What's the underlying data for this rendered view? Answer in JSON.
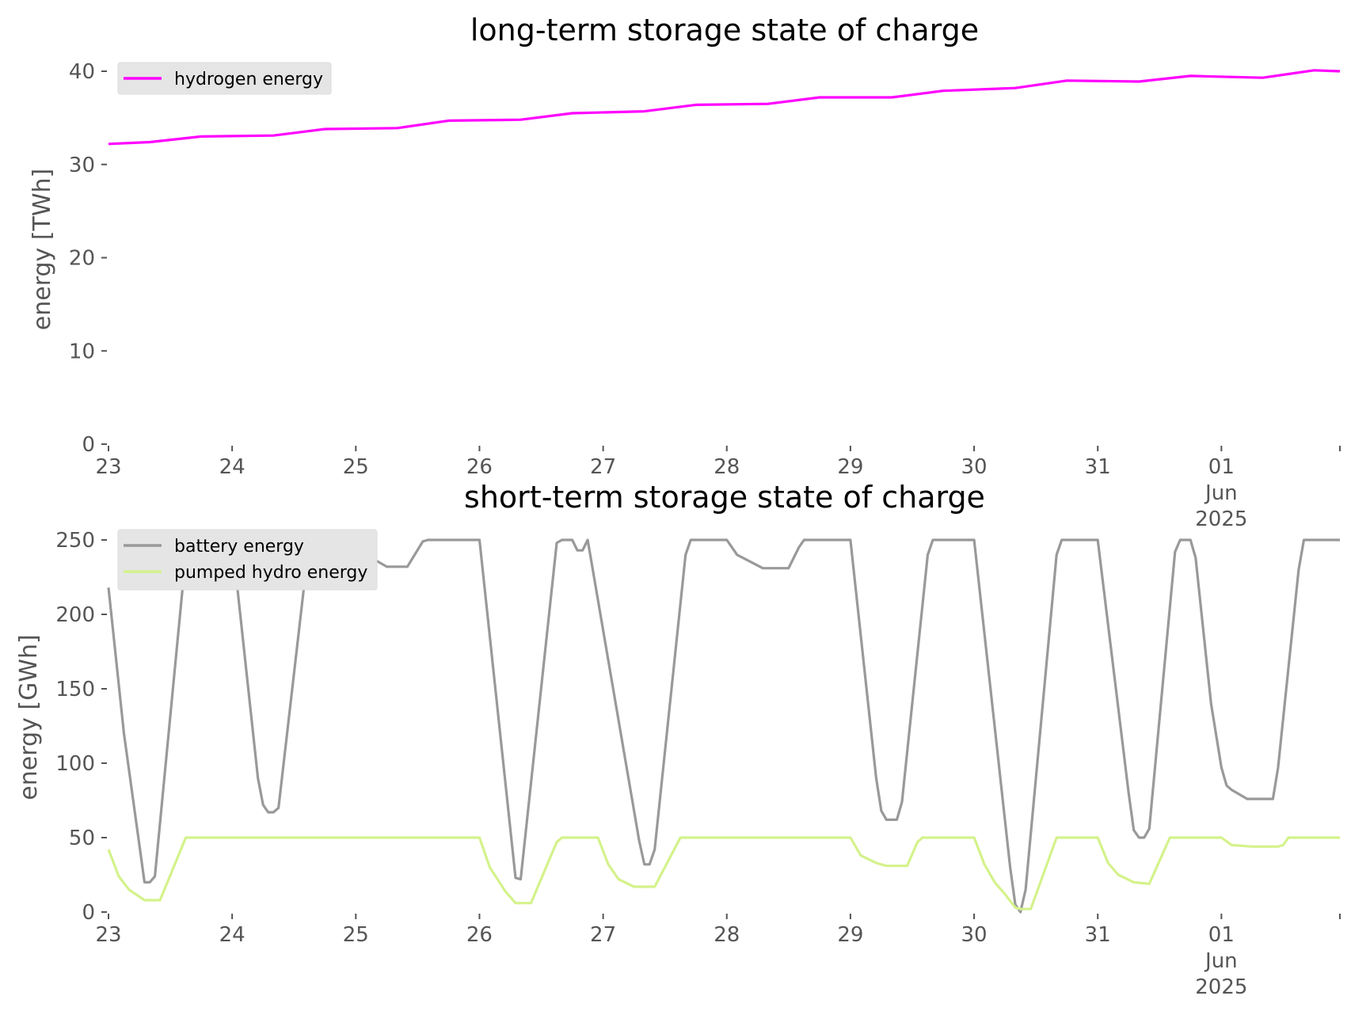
{
  "chart_data": [
    {
      "type": "line",
      "title": "long-term storage state of charge",
      "ylabel": "energy [TWh]",
      "xlabel": "",
      "x_range": [
        "2025-05-23 00:00",
        "2025-06-01 23:00"
      ],
      "ylim": [
        0,
        40
      ],
      "yticks": [
        "0",
        "10",
        "20",
        "30",
        "40"
      ],
      "xticks": [
        {
          "label": "23",
          "date": "2025-05-23"
        },
        {
          "label": "24",
          "date": "2025-05-24"
        },
        {
          "label": "25",
          "date": "2025-05-25"
        },
        {
          "label": "26",
          "date": "2025-05-26"
        },
        {
          "label": "27",
          "date": "2025-05-27"
        },
        {
          "label": "28",
          "date": "2025-05-28"
        },
        {
          "label": "29",
          "date": "2025-05-29"
        },
        {
          "label": "30",
          "date": "2025-05-30"
        },
        {
          "label": "31",
          "date": "2025-05-31"
        },
        {
          "label": "01\nJun\n2025",
          "date": "2025-06-01"
        }
      ],
      "legend": "top-left",
      "grid": false,
      "series": [
        {
          "name": "hydrogen energy",
          "color": "#ff00ff",
          "points": [
            [
              "2025-05-23 00:00",
              32.2
            ],
            [
              "2025-05-23 08:00",
              32.4
            ],
            [
              "2025-05-23 18:00",
              33.0
            ],
            [
              "2025-05-24 08:00",
              33.1
            ],
            [
              "2025-05-24 18:00",
              33.8
            ],
            [
              "2025-05-25 08:00",
              33.9
            ],
            [
              "2025-05-25 18:00",
              34.7
            ],
            [
              "2025-05-26 08:00",
              34.8
            ],
            [
              "2025-05-26 18:00",
              35.5
            ],
            [
              "2025-05-27 08:00",
              35.7
            ],
            [
              "2025-05-27 18:00",
              36.4
            ],
            [
              "2025-05-28 08:00",
              36.5
            ],
            [
              "2025-05-28 18:00",
              37.2
            ],
            [
              "2025-05-29 08:00",
              37.2
            ],
            [
              "2025-05-29 18:00",
              37.9
            ],
            [
              "2025-05-30 08:00",
              38.2
            ],
            [
              "2025-05-30 18:00",
              39.0
            ],
            [
              "2025-05-31 08:00",
              38.9
            ],
            [
              "2025-05-31 18:00",
              39.5
            ],
            [
              "2025-06-01 08:00",
              39.3
            ],
            [
              "2025-06-01 18:00",
              40.1
            ],
            [
              "2025-06-01 23:00",
              40.0
            ]
          ]
        }
      ]
    },
    {
      "type": "line",
      "title": "short-term storage state of charge",
      "ylabel": "energy [GWh]",
      "xlabel": "",
      "x_range": [
        "2025-05-23 00:00",
        "2025-06-01 23:00"
      ],
      "ylim": [
        0,
        250
      ],
      "yticks": [
        "0",
        "50",
        "100",
        "150",
        "200",
        "250"
      ],
      "xticks": [
        {
          "label": "23",
          "date": "2025-05-23"
        },
        {
          "label": "24",
          "date": "2025-05-24"
        },
        {
          "label": "25",
          "date": "2025-05-25"
        },
        {
          "label": "26",
          "date": "2025-05-26"
        },
        {
          "label": "27",
          "date": "2025-05-27"
        },
        {
          "label": "28",
          "date": "2025-05-28"
        },
        {
          "label": "29",
          "date": "2025-05-29"
        },
        {
          "label": "30",
          "date": "2025-05-30"
        },
        {
          "label": "31",
          "date": "2025-05-31"
        },
        {
          "label": "01\nJun\n2025",
          "date": "2025-06-01"
        }
      ],
      "legend": "top-left",
      "grid": false,
      "series": [
        {
          "name": "battery energy",
          "color": "#999999",
          "points": [
            [
              "2025-05-23 00:00",
              218
            ],
            [
              "2025-05-23 03:00",
              120
            ],
            [
              "2025-05-23 07:00",
              20
            ],
            [
              "2025-05-23 08:00",
              20
            ],
            [
              "2025-05-23 09:00",
              24
            ],
            [
              "2025-05-23 15:00",
              240
            ],
            [
              "2025-05-23 16:00",
              250
            ],
            [
              "2025-05-24 00:00",
              250
            ],
            [
              "2025-05-24 05:00",
              90
            ],
            [
              "2025-05-24 06:00",
              72
            ],
            [
              "2025-05-24 07:00",
              67
            ],
            [
              "2025-05-24 08:00",
              67
            ],
            [
              "2025-05-24 09:00",
              70
            ],
            [
              "2025-05-24 15:00",
              250
            ],
            [
              "2025-05-25 00:00",
              250
            ],
            [
              "2025-05-25 02:00",
              240
            ],
            [
              "2025-05-25 06:00",
              232
            ],
            [
              "2025-05-25 10:00",
              232
            ],
            [
              "2025-05-25 13:00",
              249
            ],
            [
              "2025-05-25 14:00",
              250
            ],
            [
              "2025-05-26 00:00",
              250
            ],
            [
              "2025-05-26 07:00",
              23
            ],
            [
              "2025-05-26 08:00",
              22
            ],
            [
              "2025-05-26 15:00",
              248
            ],
            [
              "2025-05-26 16:00",
              250
            ],
            [
              "2025-05-26 18:00",
              250
            ],
            [
              "2025-05-26 19:00",
              243
            ],
            [
              "2025-05-26 20:00",
              243
            ],
            [
              "2025-05-26 21:00",
              250
            ],
            [
              "2025-05-27 07:00",
              48
            ],
            [
              "2025-05-27 08:00",
              32
            ],
            [
              "2025-05-27 09:00",
              32
            ],
            [
              "2025-05-27 10:00",
              42
            ],
            [
              "2025-05-27 16:00",
              240
            ],
            [
              "2025-05-27 17:00",
              250
            ],
            [
              "2025-05-28 00:00",
              250
            ],
            [
              "2025-05-28 02:00",
              240
            ],
            [
              "2025-05-28 07:00",
              231
            ],
            [
              "2025-05-28 12:00",
              231
            ],
            [
              "2025-05-28 14:00",
              245
            ],
            [
              "2025-05-28 15:00",
              250
            ],
            [
              "2025-05-29 00:00",
              250
            ],
            [
              "2025-05-29 05:00",
              90
            ],
            [
              "2025-05-29 06:00",
              68
            ],
            [
              "2025-05-29 07:00",
              62
            ],
            [
              "2025-05-29 09:00",
              62
            ],
            [
              "2025-05-29 10:00",
              74
            ],
            [
              "2025-05-29 15:00",
              240
            ],
            [
              "2025-05-29 16:00",
              250
            ],
            [
              "2025-05-30 00:00",
              250
            ],
            [
              "2025-05-30 07:00",
              30
            ],
            [
              "2025-05-30 08:00",
              5
            ],
            [
              "2025-05-30 09:00",
              0
            ],
            [
              "2025-05-30 10:00",
              15
            ],
            [
              "2025-05-30 16:00",
              240
            ],
            [
              "2025-05-30 17:00",
              250
            ],
            [
              "2025-05-31 00:00",
              250
            ],
            [
              "2025-05-31 06:00",
              80
            ],
            [
              "2025-05-31 07:00",
              55
            ],
            [
              "2025-05-31 08:00",
              50
            ],
            [
              "2025-05-31 09:00",
              50
            ],
            [
              "2025-05-31 10:00",
              56
            ],
            [
              "2025-05-31 15:00",
              242
            ],
            [
              "2025-05-31 16:00",
              250
            ],
            [
              "2025-05-31 18:00",
              250
            ],
            [
              "2025-05-31 19:00",
              238
            ],
            [
              "2025-05-31 22:00",
              140
            ],
            [
              "2025-06-01 00:00",
              97
            ],
            [
              "2025-06-01 01:00",
              85
            ],
            [
              "2025-06-01 02:00",
              82
            ],
            [
              "2025-06-01 05:00",
              76
            ],
            [
              "2025-06-01 10:00",
              76
            ],
            [
              "2025-06-01 11:00",
              97
            ],
            [
              "2025-06-01 15:00",
              230
            ],
            [
              "2025-06-01 16:00",
              250
            ],
            [
              "2025-06-01 23:00",
              250
            ]
          ]
        },
        {
          "name": "pumped hydro energy",
          "color": "#d4f28b",
          "points": [
            [
              "2025-05-23 00:00",
              42
            ],
            [
              "2025-05-23 02:00",
              24
            ],
            [
              "2025-05-23 04:00",
              15
            ],
            [
              "2025-05-23 07:00",
              8
            ],
            [
              "2025-05-23 10:00",
              8
            ],
            [
              "2025-05-23 15:00",
              50
            ],
            [
              "2025-05-26 00:00",
              50
            ],
            [
              "2025-05-26 02:00",
              30
            ],
            [
              "2025-05-26 05:00",
              14
            ],
            [
              "2025-05-26 07:00",
              6
            ],
            [
              "2025-05-26 10:00",
              6
            ],
            [
              "2025-05-26 15:00",
              47
            ],
            [
              "2025-05-26 16:00",
              50
            ],
            [
              "2025-05-26 23:00",
              50
            ],
            [
              "2025-05-27 01:00",
              32
            ],
            [
              "2025-05-27 03:00",
              22
            ],
            [
              "2025-05-27 06:00",
              17
            ],
            [
              "2025-05-27 10:00",
              17
            ],
            [
              "2025-05-27 15:00",
              50
            ],
            [
              "2025-05-29 00:00",
              50
            ],
            [
              "2025-05-29 02:00",
              38
            ],
            [
              "2025-05-29 05:00",
              33
            ],
            [
              "2025-05-29 07:00",
              31
            ],
            [
              "2025-05-29 11:00",
              31
            ],
            [
              "2025-05-29 13:00",
              47
            ],
            [
              "2025-05-29 14:00",
              50
            ],
            [
              "2025-05-30 00:00",
              50
            ],
            [
              "2025-05-30 02:00",
              32
            ],
            [
              "2025-05-30 04:00",
              20
            ],
            [
              "2025-05-30 06:00",
              12
            ],
            [
              "2025-05-30 08:00",
              3
            ],
            [
              "2025-05-30 09:00",
              2
            ],
            [
              "2025-05-30 11:00",
              2
            ],
            [
              "2025-05-30 16:00",
              50
            ],
            [
              "2025-05-31 00:00",
              50
            ],
            [
              "2025-05-31 02:00",
              33
            ],
            [
              "2025-05-31 04:00",
              25
            ],
            [
              "2025-05-31 07:00",
              20
            ],
            [
              "2025-05-31 10:00",
              19
            ],
            [
              "2025-05-31 14:00",
              50
            ],
            [
              "2025-06-01 00:00",
              50
            ],
            [
              "2025-06-01 02:00",
              45
            ],
            [
              "2025-06-01 06:00",
              44
            ],
            [
              "2025-06-01 11:00",
              44
            ],
            [
              "2025-06-01 12:00",
              45
            ],
            [
              "2025-06-01 13:00",
              50
            ],
            [
              "2025-06-01 23:00",
              50
            ]
          ]
        }
      ]
    }
  ]
}
